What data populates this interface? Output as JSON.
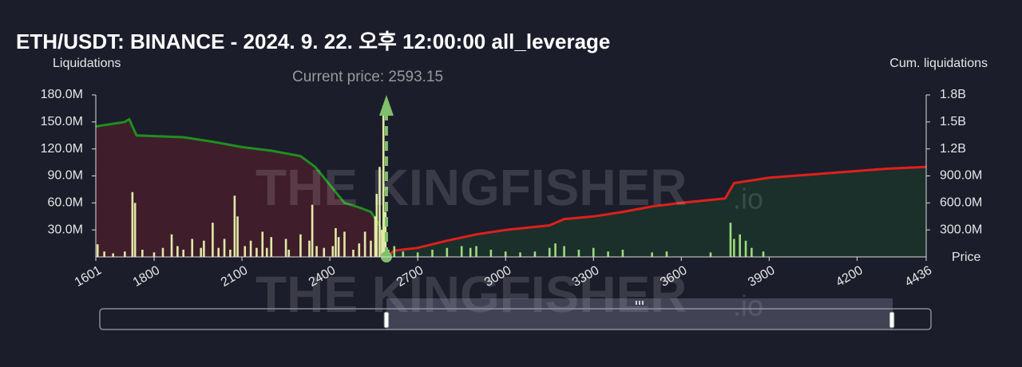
{
  "chart_data": {
    "type": "bar",
    "title": "ETH/USDT: BINANCE - 2024. 9. 22. 오후 12:00:00 all_leverage",
    "y_label": "Liquidations",
    "y2_label": "Cum. liquidations",
    "x_label": "Price",
    "annotation": "Current price: 2593.15",
    "current_price": 2593.15,
    "watermark": "THE KINGFISHER",
    "watermark_suffix": ".io",
    "xlim": [
      1601,
      4436
    ],
    "xticks": [
      1601,
      1800,
      2100,
      2400,
      2700,
      3000,
      3300,
      3600,
      3900,
      4200,
      4436
    ],
    "ylim": [
      0,
      180000000
    ],
    "yticks": [
      {
        "value": 30000000,
        "label": "30.0M"
      },
      {
        "value": 60000000,
        "label": "60.0M"
      },
      {
        "value": 90000000,
        "label": "90.0M"
      },
      {
        "value": 120000000,
        "label": "120.0M"
      },
      {
        "value": 150000000,
        "label": "150.0M"
      },
      {
        "value": 180000000,
        "label": "180.0M"
      }
    ],
    "y2lim": [
      0,
      1800000000
    ],
    "y2ticks": [
      {
        "value": 300000000,
        "label": "300.0M"
      },
      {
        "value": 600000000,
        "label": "600.0M"
      },
      {
        "value": 900000000,
        "label": "900.0M"
      },
      {
        "value": 1200000000,
        "label": "1.2B"
      },
      {
        "value": 1500000000,
        "label": "1.5B"
      },
      {
        "value": 1800000000,
        "label": "1.8B"
      }
    ],
    "series": [
      {
        "type": "bar",
        "axis": "y",
        "color": "#e2e9a6",
        "x": [
          1607,
          1630,
          1660,
          1700,
          1726,
          1735,
          1760,
          1800,
          1830,
          1860,
          1880,
          1900,
          1930,
          1960,
          1970,
          2000,
          2020,
          2040,
          2060,
          2075,
          2085,
          2110,
          2130,
          2150,
          2170,
          2185,
          2200,
          2250,
          2260,
          2300,
          2330,
          2340,
          2355,
          2380,
          2410,
          2420,
          2430,
          2450,
          2480,
          2500,
          2520,
          2540,
          2555,
          2560,
          2570,
          2578,
          2583,
          2590
        ],
        "values": [
          14000000,
          6000000,
          4000000,
          6000000,
          72000000,
          60000000,
          8000000,
          5000000,
          10000000,
          25000000,
          12000000,
          8000000,
          20000000,
          10000000,
          18000000,
          38000000,
          10000000,
          20000000,
          8000000,
          68000000,
          45000000,
          12000000,
          18000000,
          10000000,
          28000000,
          10000000,
          22000000,
          20000000,
          8000000,
          25000000,
          18000000,
          58000000,
          12000000,
          10000000,
          12000000,
          32000000,
          22000000,
          28000000,
          8000000,
          15000000,
          28000000,
          18000000,
          45000000,
          70000000,
          100000000,
          30000000,
          168000000,
          50000000
        ]
      },
      {
        "type": "bar",
        "axis": "y",
        "color": "#9edb7a",
        "x": [
          2600,
          2620,
          2650,
          2700,
          2750,
          2800,
          2850,
          2880,
          2900,
          2950,
          3000,
          3050,
          3100,
          3150,
          3170,
          3200,
          3250,
          3300,
          3350,
          3400,
          3500,
          3550,
          3700,
          3768,
          3780,
          3800,
          3820,
          3840,
          3880
        ],
        "values": [
          8000000,
          12000000,
          6000000,
          5000000,
          8000000,
          10000000,
          12000000,
          10000000,
          12000000,
          8000000,
          6000000,
          5000000,
          6000000,
          10000000,
          15000000,
          12000000,
          8000000,
          10000000,
          6000000,
          8000000,
          5000000,
          6000000,
          5000000,
          38000000,
          20000000,
          25000000,
          18000000,
          10000000,
          6000000
        ]
      },
      {
        "type": "line",
        "axis": "y2",
        "color": "#1f8f1f",
        "area": "rgba(120,30,45,0.38)",
        "x": [
          1601,
          1700,
          1715,
          1740,
          1900,
          2000,
          2100,
          2200,
          2300,
          2350,
          2400,
          2450,
          2500,
          2540,
          2570,
          2593.15
        ],
        "values": [
          1450000000,
          1500000000,
          1530000000,
          1350000000,
          1330000000,
          1280000000,
          1220000000,
          1180000000,
          1120000000,
          1000000000,
          800000000,
          600000000,
          550000000,
          500000000,
          350000000,
          0
        ]
      },
      {
        "type": "line",
        "axis": "y2",
        "color": "#e0201a",
        "area": "rgba(25,75,45,0.38)",
        "x": [
          2593.15,
          2620,
          2700,
          2800,
          2900,
          3000,
          3150,
          3200,
          3300,
          3400,
          3500,
          3600,
          3750,
          3780,
          3900,
          4100,
          4300,
          4436
        ],
        "values": [
          0,
          70000000,
          100000000,
          180000000,
          250000000,
          300000000,
          350000000,
          420000000,
          450000000,
          500000000,
          560000000,
          600000000,
          650000000,
          820000000,
          880000000,
          930000000,
          980000000,
          1000000000
        ]
      }
    ]
  }
}
